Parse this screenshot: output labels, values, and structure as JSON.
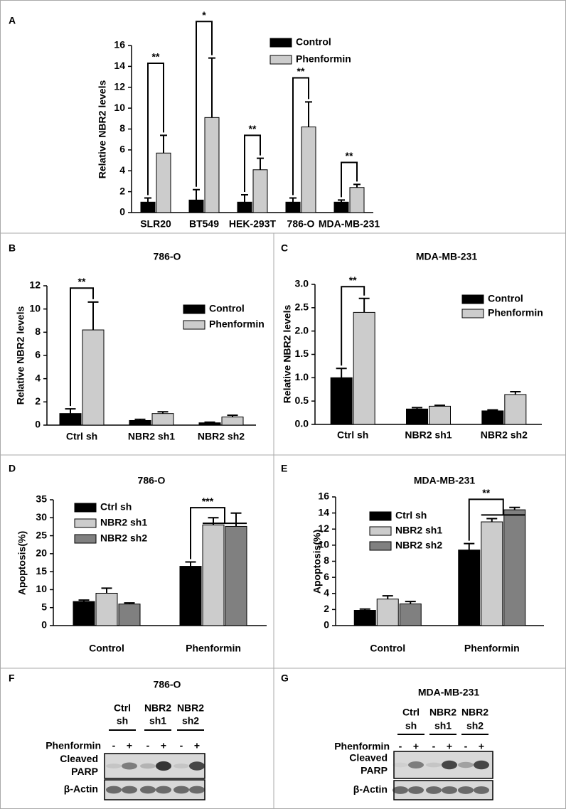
{
  "chart_data": [
    {
      "type": "bar",
      "panel": "A",
      "ylabel": "Relative NBR2 levels",
      "categories": [
        "SLR20",
        "BT549",
        "HEK-293T",
        "786-O",
        "MDA-MB-231"
      ],
      "series": [
        {
          "name": "Control",
          "color": "#000000",
          "values": [
            1.0,
            1.2,
            1.0,
            1.0,
            1.0
          ],
          "errors": [
            0.4,
            1.0,
            0.7,
            0.4,
            0.2
          ]
        },
        {
          "name": "Phenformin",
          "color": "#cccccc",
          "values": [
            5.7,
            9.1,
            4.1,
            8.2,
            2.4
          ],
          "errors": [
            1.7,
            5.7,
            1.1,
            2.4,
            0.3
          ]
        }
      ],
      "ylim": [
        0,
        16
      ],
      "yticks": [
        0,
        2,
        4,
        6,
        8,
        10,
        12,
        14,
        16
      ],
      "annotations": [
        {
          "text": "**",
          "y": 14.3,
          "category": "SLR20"
        },
        {
          "text": "*",
          "y": 18.3,
          "category": "BT549"
        },
        {
          "text": "**",
          "y": 7.4,
          "category": "HEK-293T"
        },
        {
          "text": "**",
          "y": 12.9,
          "category": "786-O"
        },
        {
          "text": "**",
          "y": 4.8,
          "category": "MDA-MB-231"
        }
      ]
    },
    {
      "type": "bar",
      "panel": "B",
      "title": "786-O",
      "ylabel": "Relative NBR2 levels",
      "categories": [
        "Ctrl sh",
        "NBR2 sh1",
        "NBR2 sh2"
      ],
      "series": [
        {
          "name": "Control",
          "color": "#000000",
          "values": [
            1.0,
            0.4,
            0.2
          ],
          "errors": [
            0.4,
            0.1,
            0.05
          ]
        },
        {
          "name": "Phenformin",
          "color": "#cccccc",
          "values": [
            8.2,
            1.0,
            0.7
          ],
          "errors": [
            2.4,
            0.15,
            0.15
          ]
        }
      ],
      "ylim": [
        0,
        12
      ],
      "yticks": [
        0,
        2,
        4,
        6,
        8,
        10,
        12
      ],
      "annotations": [
        {
          "text": "**",
          "y": 11.8,
          "category": "Ctrl sh"
        }
      ]
    },
    {
      "type": "bar",
      "panel": "C",
      "title": "MDA-MB-231",
      "ylabel": "Relative NBR2 levels",
      "categories": [
        "Ctrl sh",
        "NBR2 sh1",
        "NBR2 sh2"
      ],
      "series": [
        {
          "name": "Control",
          "color": "#000000",
          "values": [
            1.0,
            0.33,
            0.29
          ],
          "errors": [
            0.2,
            0.03,
            0.02
          ]
        },
        {
          "name": "Phenformin",
          "color": "#cccccc",
          "values": [
            2.4,
            0.39,
            0.64
          ],
          "errors": [
            0.3,
            0.02,
            0.06
          ]
        }
      ],
      "ylim": [
        0,
        3
      ],
      "yticks": [
        {
          "value": 0,
          "label": "0.0"
        },
        0.5,
        {
          "value": 1,
          "label": "1.0"
        },
        1.5,
        {
          "value": 2,
          "label": "2.0"
        },
        2.5,
        {
          "value": 3,
          "label": "3.0"
        }
      ],
      "annotations": [
        {
          "text": "**",
          "y": 2.95,
          "category": "Ctrl sh"
        }
      ]
    },
    {
      "type": "bar",
      "panel": "D",
      "title": "786-O",
      "ylabel": "Apoptosis(%)",
      "categories": [
        "Control",
        "Phenformin"
      ],
      "series": [
        {
          "name": "Ctrl sh",
          "color": "#000000",
          "values": [
            6.7,
            16.5
          ],
          "errors": [
            0.4,
            1.2
          ]
        },
        {
          "name": "NBR2 sh1",
          "color": "#cccccc",
          "values": [
            9.0,
            28.0
          ],
          "errors": [
            1.4,
            2.0
          ]
        },
        {
          "name": "NBR2 sh2",
          "color": "#808080",
          "values": [
            6.0,
            27.6
          ],
          "errors": [
            0.3,
            3.7
          ]
        }
      ],
      "ylim": [
        0,
        35
      ],
      "yticks": [
        0,
        5,
        10,
        15,
        20,
        25,
        30,
        35
      ],
      "annotations": [
        {
          "text": "***",
          "y": 32.8,
          "category": "Phenformin"
        }
      ]
    },
    {
      "type": "bar",
      "panel": "E",
      "title": "MDA-MB-231",
      "ylabel": "Apoptosis(%)",
      "categories": [
        "Control",
        "Phenformin"
      ],
      "series": [
        {
          "name": "Ctrl sh",
          "color": "#000000",
          "values": [
            1.9,
            9.4
          ],
          "errors": [
            0.15,
            0.8
          ]
        },
        {
          "name": "NBR2 sh1",
          "color": "#cccccc",
          "values": [
            3.3,
            12.9
          ],
          "errors": [
            0.4,
            0.4
          ]
        },
        {
          "name": "NBR2 sh2",
          "color": "#808080",
          "values": [
            2.7,
            14.4
          ],
          "errors": [
            0.3,
            0.3
          ]
        }
      ],
      "ylim": [
        0,
        16
      ],
      "yticks": [
        0,
        2,
        4,
        6,
        8,
        10,
        12,
        14,
        16
      ],
      "annotations": [
        {
          "text": "**",
          "y": 15.7,
          "category": "Phenformin"
        }
      ]
    }
  ],
  "blots": [
    {
      "panel": "F",
      "title": "786-O",
      "groups": [
        [
          "Ctrl",
          "sh"
        ],
        [
          "NBR2",
          "sh1"
        ],
        [
          "NBR2",
          "sh2"
        ]
      ],
      "treatment": "Phenformin",
      "signs": [
        "-",
        "+",
        "-",
        "+",
        "-",
        "+"
      ],
      "rows": [
        {
          "label": [
            "Cleaved",
            "PARP"
          ],
          "intensities": [
            0.1,
            0.5,
            0.2,
            0.9,
            0.1,
            0.8
          ]
        },
        {
          "label": [
            "β-Actin"
          ],
          "intensities": [
            0.6,
            0.6,
            0.6,
            0.6,
            0.6,
            0.6
          ]
        }
      ]
    },
    {
      "panel": "G",
      "title": "MDA-MB-231",
      "groups": [
        [
          "Ctrl",
          "sh"
        ],
        [
          "NBR2",
          "sh1"
        ],
        [
          "NBR2",
          "sh2"
        ]
      ],
      "treatment": "Phenformin",
      "signs": [
        "-",
        "+",
        "-",
        "+",
        "-",
        "+"
      ],
      "rows": [
        {
          "label": [
            "Cleaved",
            "PARP"
          ],
          "intensities": [
            0.05,
            0.5,
            0.1,
            0.8,
            0.3,
            0.8
          ]
        },
        {
          "label": [
            "β-Actin"
          ],
          "intensities": [
            0.6,
            0.6,
            0.6,
            0.6,
            0.6,
            0.6
          ]
        }
      ]
    }
  ]
}
